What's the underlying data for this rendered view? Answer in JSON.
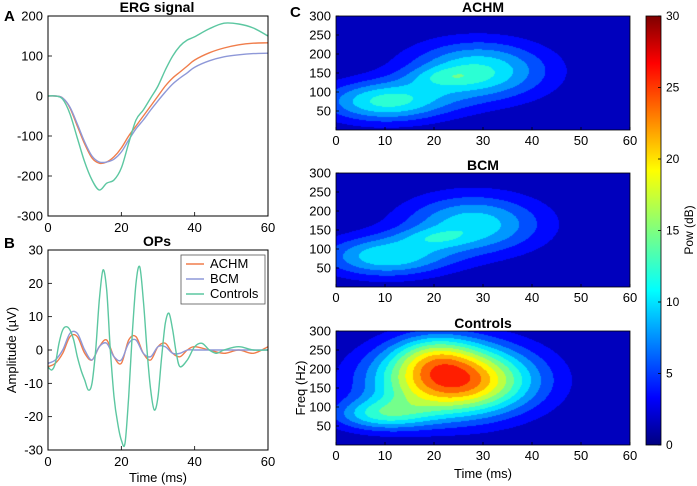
{
  "panel_labels": {
    "a": "A",
    "b": "B",
    "c": "C"
  },
  "chart_data": [
    {
      "id": "erg",
      "type": "line",
      "title": "ERG signal",
      "xlabel": "",
      "ylabel": "",
      "xlim": [
        0,
        60
      ],
      "ylim": [
        -300,
        200
      ],
      "xticks": [
        0,
        20,
        40,
        60
      ],
      "yticks": [
        -300,
        -200,
        -100,
        0,
        100,
        200
      ],
      "series": [
        {
          "name": "ACHM",
          "color": "#f07d4b",
          "x": [
            0,
            2,
            4,
            6,
            8,
            10,
            12,
            14,
            16,
            18,
            20,
            22,
            24,
            26,
            28,
            30,
            32,
            34,
            36,
            38,
            40,
            44,
            48,
            52,
            56,
            60
          ],
          "y": [
            0,
            0,
            -5,
            -30,
            -75,
            -120,
            -155,
            -168,
            -165,
            -152,
            -130,
            -100,
            -75,
            -50,
            -25,
            0,
            25,
            45,
            60,
            75,
            90,
            108,
            120,
            128,
            132,
            133
          ]
        },
        {
          "name": "BCM",
          "color": "#8e98d8",
          "x": [
            0,
            2,
            4,
            6,
            8,
            10,
            12,
            14,
            16,
            18,
            20,
            22,
            24,
            26,
            28,
            30,
            32,
            34,
            36,
            38,
            40,
            44,
            48,
            52,
            56,
            60
          ],
          "y": [
            0,
            0,
            -5,
            -28,
            -70,
            -115,
            -150,
            -165,
            -165,
            -158,
            -140,
            -110,
            -82,
            -60,
            -35,
            -12,
            10,
            30,
            45,
            58,
            72,
            88,
            98,
            103,
            106,
            107
          ]
        },
        {
          "name": "Controls",
          "color": "#5cc7a1",
          "x": [
            0,
            2,
            4,
            6,
            8,
            10,
            12,
            14,
            16,
            18,
            20,
            22,
            24,
            26,
            28,
            30,
            32,
            34,
            36,
            38,
            40,
            44,
            48,
            52,
            56,
            60
          ],
          "y": [
            0,
            0,
            -8,
            -45,
            -105,
            -165,
            -210,
            -235,
            -218,
            -210,
            -180,
            -118,
            -60,
            -35,
            -5,
            25,
            65,
            100,
            125,
            140,
            148,
            168,
            182,
            180,
            170,
            150
          ]
        }
      ]
    },
    {
      "id": "ops",
      "type": "line",
      "title": "OPs",
      "xlabel": "Time (ms)",
      "ylabel": "Amplitude (µV)",
      "xlim": [
        0,
        60
      ],
      "ylim": [
        -30,
        30
      ],
      "xticks": [
        0,
        20,
        40,
        60
      ],
      "yticks": [
        -30,
        -20,
        -10,
        0,
        10,
        20,
        30
      ],
      "legend": "top-right",
      "series": [
        {
          "name": "ACHM",
          "color": "#f07d4b",
          "x": [
            0,
            2,
            4,
            6,
            8,
            10,
            12,
            14,
            16,
            18,
            20,
            22,
            24,
            26,
            28,
            30,
            32,
            34,
            36,
            38,
            40,
            44,
            48,
            52,
            56,
            60
          ],
          "y": [
            -5,
            -4,
            -1,
            4,
            4,
            -1,
            -3,
            1,
            3,
            -2,
            -4,
            3,
            4,
            -1,
            -3,
            1,
            2,
            -1,
            -2,
            0,
            1,
            0,
            -1,
            0,
            -1,
            1
          ]
        },
        {
          "name": "BCM",
          "color": "#8e98d8",
          "x": [
            0,
            2,
            4,
            6,
            8,
            10,
            12,
            14,
            16,
            18,
            20,
            22,
            24,
            26,
            28,
            30,
            32,
            34,
            36,
            38,
            40,
            44,
            48,
            52,
            56,
            60
          ],
          "y": [
            -4,
            -3,
            0,
            5,
            5,
            0,
            -3,
            1,
            2,
            -2,
            -3,
            2,
            3,
            -1,
            -2,
            1,
            1,
            -1,
            -1,
            0,
            0,
            0,
            0,
            0,
            0,
            0
          ]
        },
        {
          "name": "Controls",
          "color": "#5cc7a1",
          "x": [
            0,
            1,
            2,
            3,
            4,
            5,
            6,
            7,
            8,
            9,
            10,
            11,
            12,
            13,
            14,
            15,
            16,
            17,
            18,
            19,
            20,
            21,
            22,
            23,
            24,
            25,
            26,
            27,
            28,
            29,
            30,
            31,
            32,
            33,
            34,
            35,
            36,
            38,
            40,
            42,
            44,
            46,
            48,
            52,
            56,
            60
          ],
          "y": [
            -5,
            -6,
            -4,
            2,
            6,
            7,
            6,
            3,
            -2,
            -6,
            -9,
            -12,
            -10,
            0,
            15,
            24,
            18,
            0,
            -14,
            -22,
            -27,
            -28,
            -14,
            5,
            20,
            25,
            15,
            0,
            -12,
            -18,
            -14,
            -2,
            8,
            11,
            6,
            -1,
            -5,
            -3,
            1,
            2,
            0,
            -1,
            0,
            1,
            0,
            0
          ]
        }
      ]
    },
    {
      "id": "achm",
      "type": "heatmap",
      "title": "ACHM",
      "xlabel": "",
      "ylabel": "",
      "xlim": [
        0,
        60
      ],
      "ylim": [
        0,
        300
      ],
      "xticks": [
        0,
        10,
        20,
        30,
        40,
        50,
        60
      ],
      "yticks": [
        50,
        100,
        150,
        200,
        250,
        300
      ],
      "blobs": [
        {
          "cx": 10,
          "cy": 75,
          "sx": 9,
          "sy": 38,
          "amp": 11
        },
        {
          "cx": 29,
          "cy": 155,
          "sx": 10,
          "sy": 55,
          "amp": 11
        },
        {
          "cx": 22,
          "cy": 140,
          "sx": 5,
          "sy": 18,
          "amp": 3
        }
      ]
    },
    {
      "id": "bcm",
      "type": "heatmap",
      "title": "BCM",
      "xlabel": "",
      "ylabel": "",
      "xlim": [
        0,
        60
      ],
      "ylim": [
        0,
        300
      ],
      "xticks": [
        0,
        10,
        20,
        30,
        40,
        50,
        60
      ],
      "yticks": [
        50,
        100,
        150,
        200,
        250,
        300
      ],
      "blobs": [
        {
          "cx": 10,
          "cy": 80,
          "sx": 9,
          "sy": 38,
          "amp": 10
        },
        {
          "cx": 28,
          "cy": 165,
          "sx": 10,
          "sy": 55,
          "amp": 10
        },
        {
          "cx": 20,
          "cy": 130,
          "sx": 5,
          "sy": 18,
          "amp": 3
        }
      ]
    },
    {
      "id": "controls",
      "type": "heatmap",
      "title": "Controls",
      "xlabel": "Time (ms)",
      "ylabel": "Freq (Hz)",
      "xlim": [
        0,
        60
      ],
      "ylim": [
        0,
        300
      ],
      "xticks": [
        0,
        10,
        20,
        30,
        40,
        50,
        60
      ],
      "yticks": [
        50,
        100,
        150,
        200,
        250,
        300
      ],
      "blobs": [
        {
          "cx": 24,
          "cy": 170,
          "sx": 11,
          "sy": 65,
          "amp": 24
        },
        {
          "cx": 9,
          "cy": 80,
          "sx": 7,
          "sy": 30,
          "amp": 9
        },
        {
          "cx": 20,
          "cy": 240,
          "sx": 6,
          "sy": 40,
          "amp": 6
        }
      ]
    }
  ],
  "colorbar": {
    "label": "Pow (dB)",
    "min": 0,
    "max": 30,
    "ticks": [
      0,
      5,
      10,
      15,
      20,
      25,
      30
    ]
  }
}
